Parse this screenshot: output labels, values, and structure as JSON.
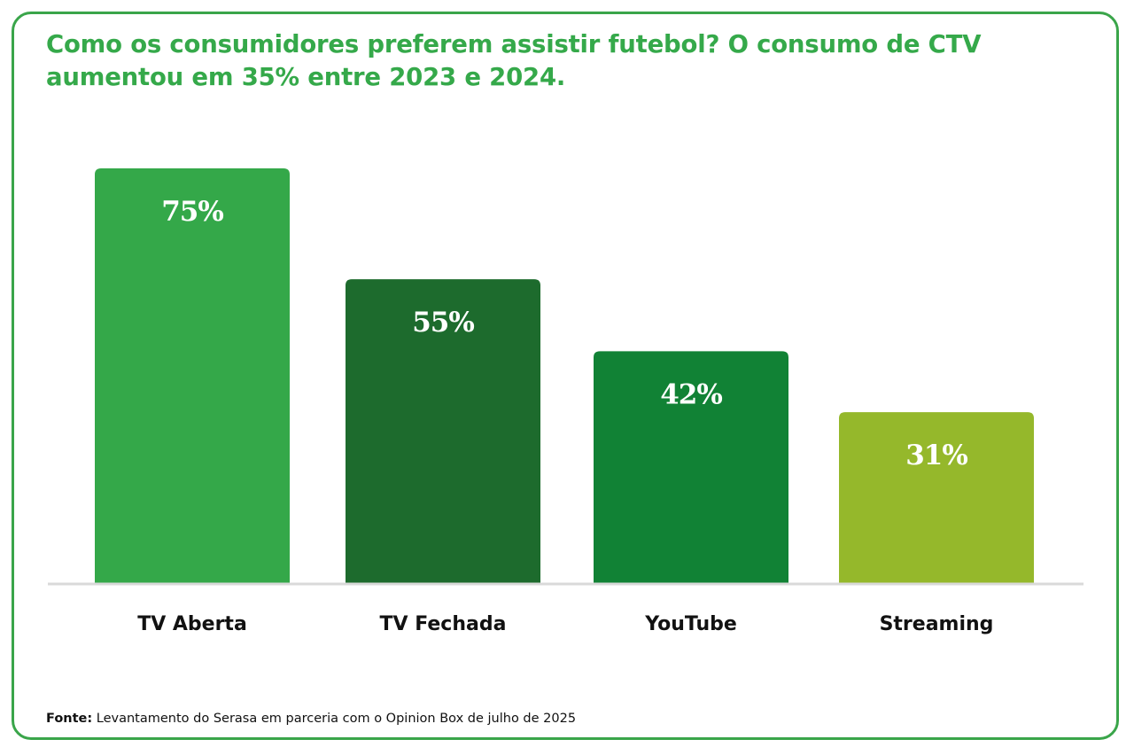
{
  "title": "Como os consumidores preferem assistir futebol? O consumo de CTV aumentou em 35% entre 2023 e 2024.",
  "footer": {
    "label": "Fonte:",
    "text": " Levantamento do Serasa em parceria com o Opinion Box de julho de 2025"
  },
  "colors": {
    "border": "#3aa54a",
    "title": "#35a94a",
    "baseline": "#d9d9d9"
  },
  "chart_data": {
    "type": "bar",
    "categories": [
      "TV Aberta",
      "TV Fechada",
      "YouTube",
      "Streaming"
    ],
    "values": [
      75,
      55,
      42,
      31
    ],
    "value_labels": [
      "75%",
      "55%",
      "42%",
      "31%"
    ],
    "bar_colors": [
      "#34a849",
      "#1d6b2d",
      "#118235",
      "#95b82b"
    ],
    "ylim": [
      0,
      75
    ],
    "grid": false,
    "legend": "none"
  }
}
